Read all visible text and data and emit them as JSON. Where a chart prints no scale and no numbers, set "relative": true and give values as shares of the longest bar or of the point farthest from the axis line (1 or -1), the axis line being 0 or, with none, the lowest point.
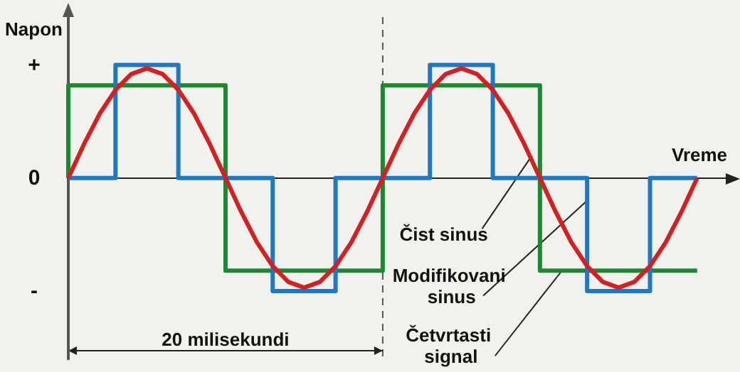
{
  "chart_data": {
    "type": "line",
    "xlabel": "Vreme",
    "ylabel": "Napon",
    "categories": [
      null,
      null,
      null,
      null,
      null,
      null,
      null,
      null,
      null,
      null,
      null,
      null,
      null,
      null,
      null,
      null,
      null,
      null,
      null,
      null,
      null,
      null,
      null,
      null,
      null,
      null,
      null,
      null,
      null,
      null,
      null,
      null,
      null,
      null,
      null,
      null,
      null,
      null,
      null,
      null,
      null,
      null,
      null
    ],
    "relative": true,
    "grid": false,
    "marker": "none",
    "series": [
      {
        "type": "step",
        "color": "#1a8a30",
        "values": [
          0,
          0.82,
          0.82,
          0.82,
          0.82,
          0.82,
          0.82,
          0.82,
          0.82,
          0.82,
          0.82,
          -0.82,
          -0.82,
          -0.82,
          -0.82,
          -0.82,
          -0.82,
          -0.82,
          -0.82,
          -0.82,
          -0.82,
          0.82,
          0.82,
          0.82,
          0.82,
          0.82,
          0.82,
          0.82,
          0.82,
          0.82,
          0.82,
          -0.82,
          -0.82,
          -0.82,
          -0.82,
          -0.82,
          -0.82,
          -0.82,
          -0.82,
          -0.82,
          -0.82,
          null,
          null
        ]
      },
      {
        "type": "step",
        "color": "#1f78c4",
        "values": [
          0,
          0,
          0,
          0,
          1,
          1,
          1,
          1,
          0,
          0,
          0,
          0,
          0,
          0,
          -1,
          -1,
          -1,
          -1,
          0,
          0,
          0,
          0,
          0,
          0,
          1,
          1,
          1,
          1,
          0,
          0,
          0,
          0,
          0,
          0,
          -1,
          -1,
          -1,
          -1,
          0,
          0,
          0,
          null,
          null
        ]
      },
      {
        "color": "#d42020",
        "values": [
          0,
          0.3,
          0.57,
          0.78,
          0.92,
          0.97,
          0.92,
          0.78,
          0.57,
          0.3,
          0,
          -0.3,
          -0.57,
          -0.78,
          -0.92,
          -0.97,
          -0.92,
          -0.78,
          -0.57,
          -0.3,
          0,
          0.3,
          0.57,
          0.78,
          0.92,
          0.97,
          0.92,
          0.78,
          0.57,
          0.3,
          0,
          -0.3,
          -0.57,
          -0.78,
          -0.92,
          -0.97,
          -0.92,
          -0.78,
          -0.57,
          -0.3,
          0,
          null,
          null
        ]
      }
    ],
    "annotations": [
      "Čist sinus",
      "Modifikovani sinus",
      "Četvrtasti signal",
      "20 milisekundi",
      "+",
      "0",
      "-"
    ]
  }
}
